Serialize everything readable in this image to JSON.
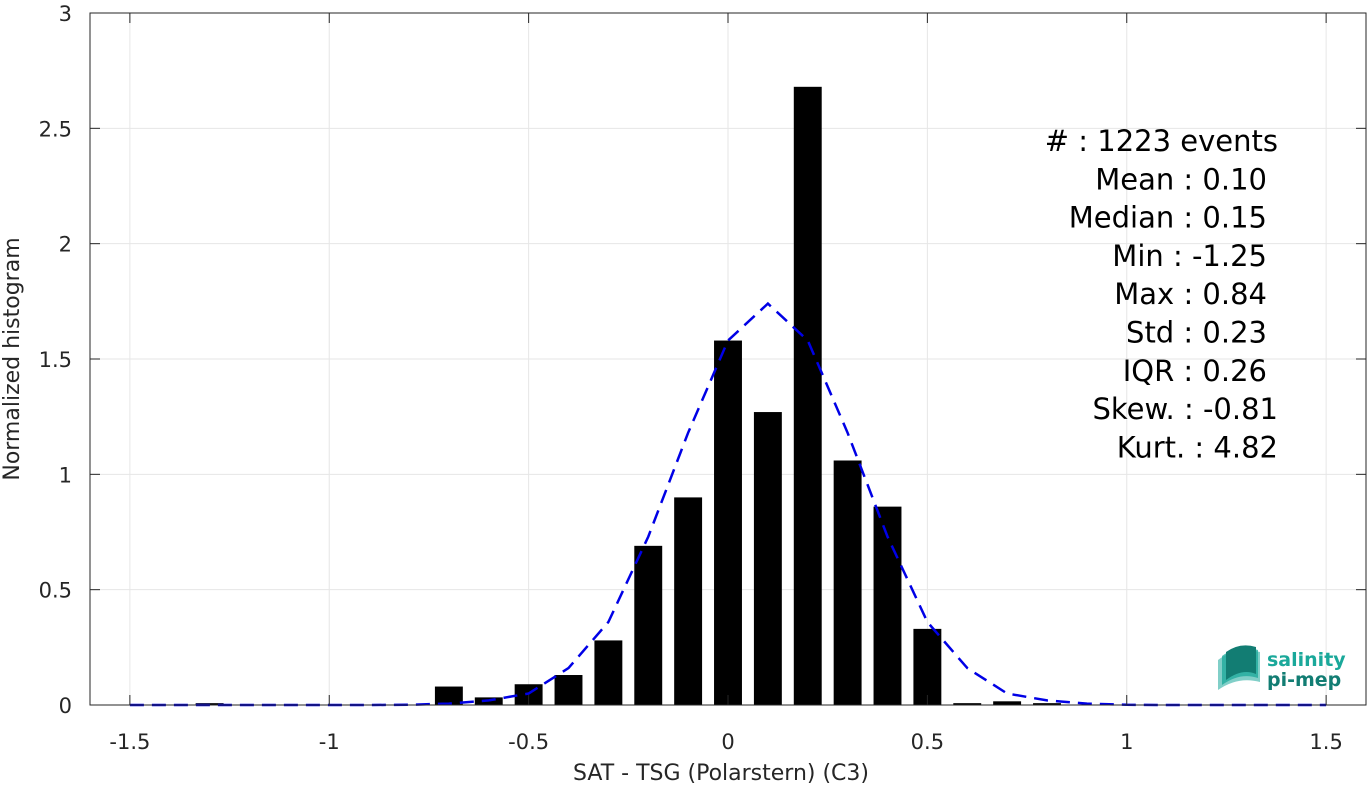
{
  "chart_data": {
    "type": "bar",
    "xlabel": "SAT - TSG (Polarstern) (C3)",
    "ylabel": "Normalized histogram",
    "xlim": [
      -1.6,
      1.6
    ],
    "ylim": [
      0,
      3
    ],
    "xticks": [
      -1.5,
      -1,
      -0.5,
      0,
      0.5,
      1,
      1.5
    ],
    "xtick_labels": [
      "-1.5",
      "-1",
      "-0.5",
      "0",
      "0.5",
      "1",
      "1.5"
    ],
    "yticks": [
      0,
      0.5,
      1,
      1.5,
      2,
      2.5,
      3
    ],
    "ytick_labels": [
      "0",
      "0.5",
      "1",
      "1.5",
      "2",
      "2.5",
      "3"
    ],
    "grid": true,
    "bar_width": 0.07,
    "bar_color": "#000000",
    "bars": [
      {
        "x": -1.3,
        "value": 0.008
      },
      {
        "x": -0.7,
        "value": 0.08
      },
      {
        "x": -0.6,
        "value": 0.033
      },
      {
        "x": -0.5,
        "value": 0.09
      },
      {
        "x": -0.4,
        "value": 0.13
      },
      {
        "x": -0.3,
        "value": 0.28
      },
      {
        "x": -0.2,
        "value": 0.69
      },
      {
        "x": -0.1,
        "value": 0.9
      },
      {
        "x": 0.0,
        "value": 1.58
      },
      {
        "x": 0.1,
        "value": 1.27
      },
      {
        "x": 0.2,
        "value": 2.68
      },
      {
        "x": 0.3,
        "value": 1.06
      },
      {
        "x": 0.4,
        "value": 0.86
      },
      {
        "x": 0.5,
        "value": 0.33
      },
      {
        "x": 0.6,
        "value": 0.008
      },
      {
        "x": 0.7,
        "value": 0.016
      },
      {
        "x": 0.8,
        "value": 0.008
      }
    ],
    "fit_curve": {
      "style": "dashed",
      "color": "#0000e6",
      "x": [
        -1.5,
        -1.4,
        -1.3,
        -1.2,
        -1.1,
        -1.0,
        -0.9,
        -0.8,
        -0.7,
        -0.6,
        -0.5,
        -0.4,
        -0.3,
        -0.2,
        -0.1,
        0.0,
        0.1,
        0.2,
        0.3,
        0.4,
        0.5,
        0.6,
        0.7,
        0.8,
        0.9,
        1.0,
        1.1,
        1.2,
        1.3,
        1.4,
        1.5
      ],
      "y": [
        0,
        0,
        0,
        0,
        0,
        0,
        0,
        0.001,
        0.006,
        0.02,
        0.05,
        0.16,
        0.36,
        0.73,
        1.18,
        1.58,
        1.74,
        1.58,
        1.18,
        0.73,
        0.36,
        0.16,
        0.05,
        0.02,
        0.006,
        0.001,
        0,
        0,
        0,
        0,
        0
      ]
    },
    "stats": [
      {
        "text": "#  : 1223 events"
      },
      {
        "text": "Mean : 0.10"
      },
      {
        "text": "Median : 0.15"
      },
      {
        "text": "Min : -1.25"
      },
      {
        "text": "Max : 0.84"
      },
      {
        "text": "Std : 0.23"
      },
      {
        "text": "IQR : 0.26"
      },
      {
        "text": "Skew. : -0.81"
      },
      {
        "text": "Kurt. : 4.82"
      }
    ]
  },
  "logo": {
    "line1": "salinity",
    "line2": "pi-mep",
    "color": "#1aa89a"
  }
}
